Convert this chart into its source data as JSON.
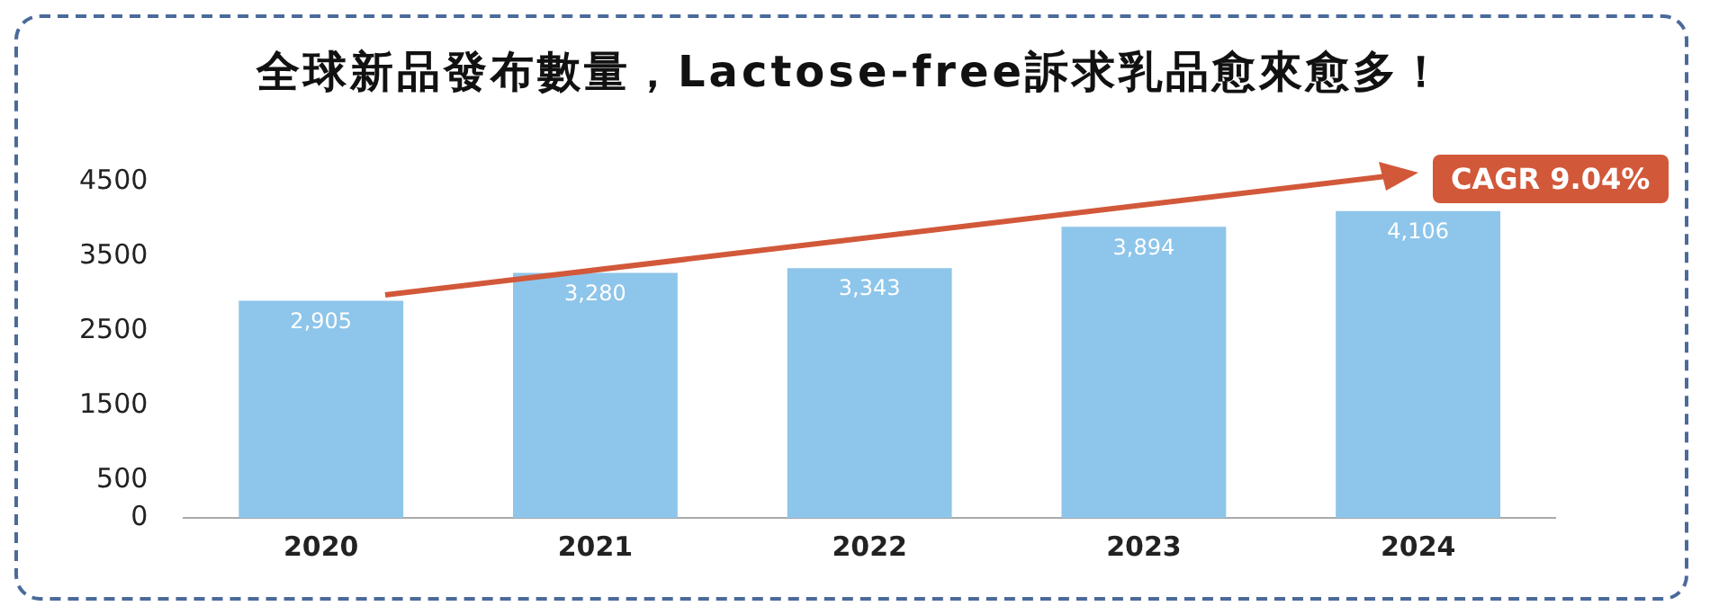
{
  "chart_data": {
    "type": "bar",
    "title": "全球新品發布數量，Lactose-free訴求乳品愈來愈多！",
    "categories": [
      "2020",
      "2021",
      "2022",
      "2023",
      "2024"
    ],
    "values": [
      2905,
      3280,
      3343,
      3894,
      4106
    ],
    "color": "#8ec5ea",
    "ylim": [
      0,
      4500
    ],
    "yticks": [
      0,
      500,
      1500,
      2500,
      3500,
      4500
    ],
    "grid": false,
    "data_labels": true,
    "value_labels": [
      "2,905",
      "3,280",
      "3,343",
      "3,894",
      "4,106"
    ],
    "annotations": [
      "CAGR 9.04%"
    ]
  }
}
